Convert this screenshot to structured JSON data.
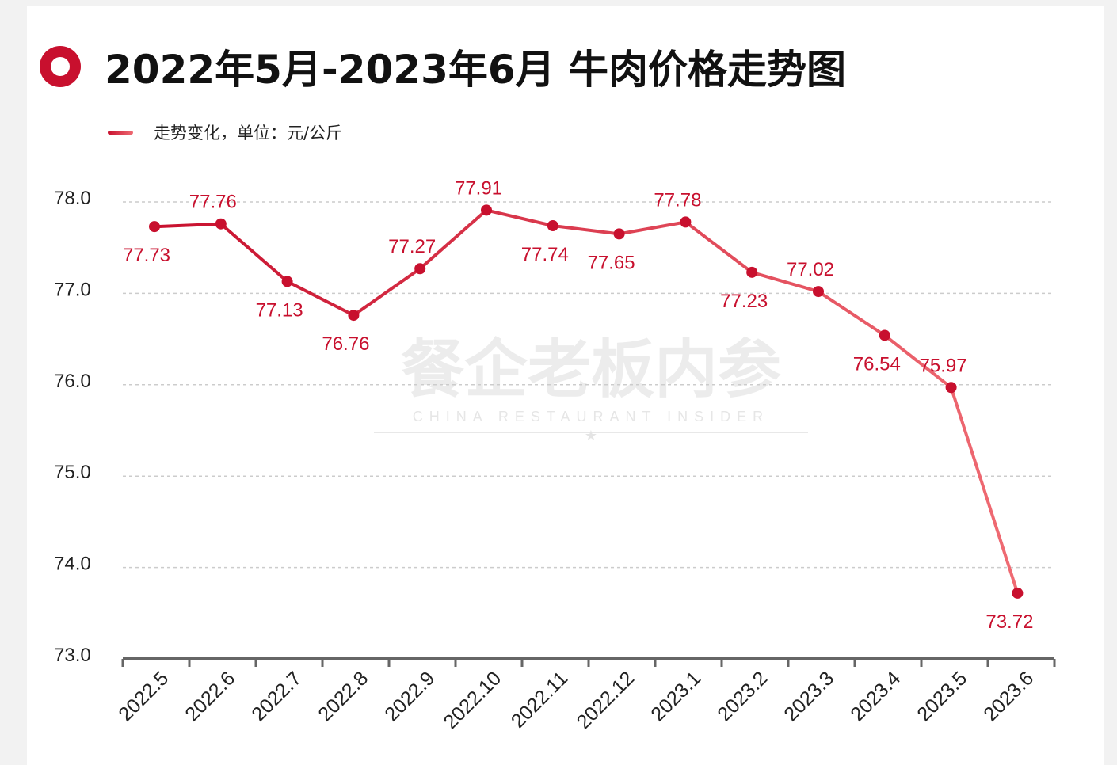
{
  "title": "2022年5月-2023年6月 牛肉价格走势图",
  "legend_label": "走势变化，单位：元/公斤",
  "watermark": {
    "cn": "餐企老板内参",
    "en": "CHINA RESTAURANT INSIDER"
  },
  "colors": {
    "accent": "#c8102e",
    "line_end": "#ef6b73",
    "grid": "#cccccc",
    "axis": "#666666"
  },
  "chart_data": {
    "type": "line",
    "title": "2022年5月-2023年6月 牛肉价格走势图",
    "xlabel": "",
    "ylabel": "",
    "categories": [
      "2022.5",
      "2022.6",
      "2022.7",
      "2022.8",
      "2022.9",
      "2022.10",
      "2022.11",
      "2022.12",
      "2023.1",
      "2023.2",
      "2023.3",
      "2023.4",
      "2023.5",
      "2023.6"
    ],
    "series": [
      {
        "name": "走势变化，单位：元/公斤",
        "values": [
          77.73,
          77.76,
          77.13,
          76.76,
          77.27,
          77.91,
          77.74,
          77.65,
          77.78,
          77.23,
          77.02,
          76.54,
          75.97,
          73.72
        ]
      }
    ],
    "ylim": [
      73.0,
      78.0
    ],
    "yticks": [
      "73.0",
      "74.0",
      "75.0",
      "76.0",
      "77.0",
      "78.0"
    ],
    "grid": true,
    "legend_position": "top-left"
  }
}
